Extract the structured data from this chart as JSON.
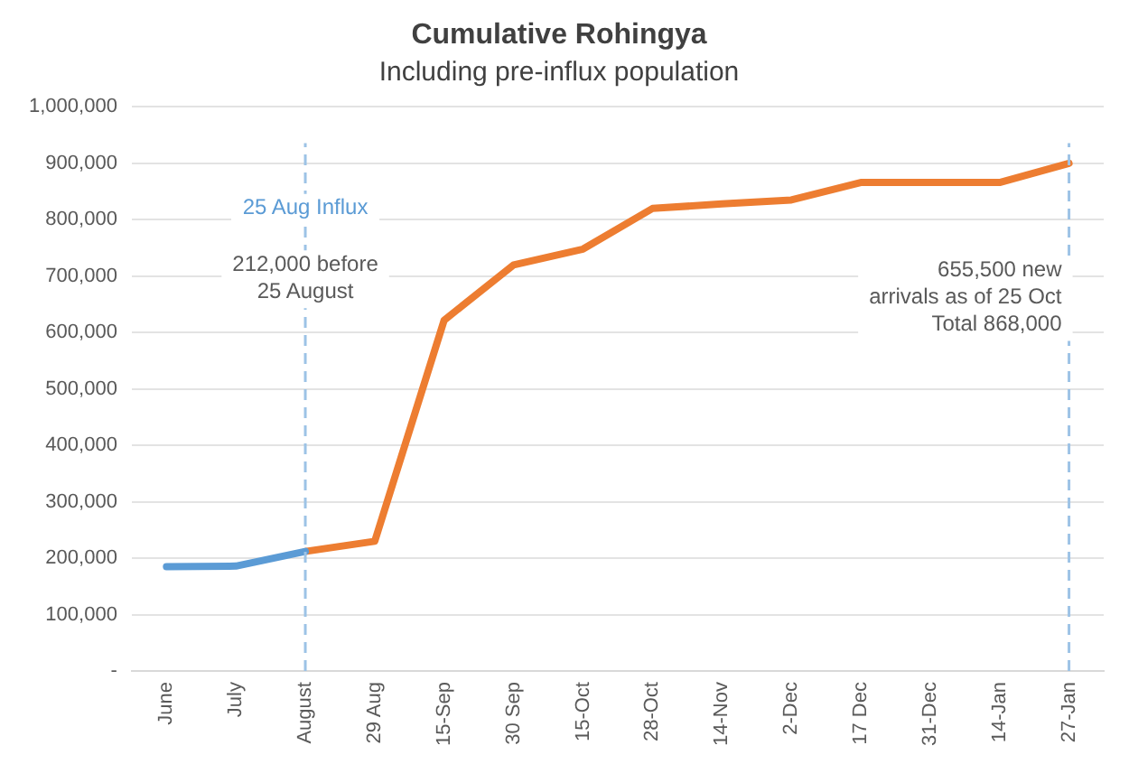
{
  "chart_data": {
    "type": "line",
    "title": "Cumulative Rohingya",
    "subtitle": "Including pre-influx population",
    "categories": [
      "June",
      "July",
      "August",
      "29 Aug",
      "15-Sep",
      "30 Sep",
      "15-Oct",
      "28-Oct",
      "14-Nov",
      "2-Dec",
      "17 Dec",
      "31-Dec",
      "14-Jan",
      "27-Jan"
    ],
    "series": [
      {
        "color": "#5b9bd5",
        "values": [
          185000,
          186000,
          212000,
          null,
          null,
          null,
          null,
          null,
          null,
          null,
          null,
          null,
          null,
          null
        ]
      },
      {
        "color": "#ed7d31",
        "values": [
          null,
          null,
          212000,
          230000,
          622000,
          720000,
          748000,
          820000,
          828000,
          835000,
          866000,
          866000,
          866000,
          900000
        ]
      }
    ],
    "ylim": [
      0,
      1000000
    ],
    "yticks": [
      {
        "value": 0,
        "label": "-"
      },
      {
        "value": 100000,
        "label": "100,000"
      },
      {
        "value": 200000,
        "label": "200,000"
      },
      {
        "value": 300000,
        "label": "300,000"
      },
      {
        "value": 400000,
        "label": "400,000"
      },
      {
        "value": 500000,
        "label": "500,000"
      },
      {
        "value": 600000,
        "label": "600,000"
      },
      {
        "value": 700000,
        "label": "700,000"
      },
      {
        "value": 800000,
        "label": "800,000"
      },
      {
        "value": 900000,
        "label": "900,000"
      },
      {
        "value": 1000000,
        "label": "1,000,000"
      }
    ],
    "grid": "y",
    "legend": false,
    "marker": "none",
    "line_style": "solid",
    "ref_lines": [
      {
        "axis": "x",
        "value": "August",
        "color": "#9dc3e6",
        "line_style": "dashed"
      },
      {
        "axis": "x",
        "value": "27-Jan",
        "color": "#9dc3e6",
        "line_style": "dashed"
      }
    ],
    "annotations": [
      {
        "text": "25 Aug Influx",
        "x": "August",
        "y": 820000
      },
      {
        "text": "212,000 before\n25 August",
        "x": "August",
        "y": 720000
      },
      {
        "text": "655,500 new\narrivals as of 25 Oct\nTotal 868,000",
        "x": "27-Jan",
        "y": 710000
      }
    ]
  }
}
